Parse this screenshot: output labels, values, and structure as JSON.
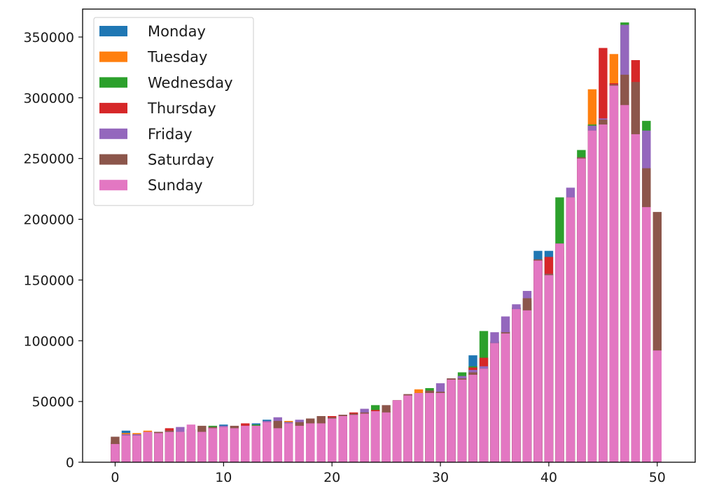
{
  "chart_data": {
    "type": "bar",
    "title": "",
    "xlabel": "",
    "ylabel": "",
    "xlim": [
      -3,
      53.5
    ],
    "ylim": [
      0,
      373000
    ],
    "xticks": [
      0,
      10,
      20,
      30,
      40,
      50
    ],
    "yticks": [
      0,
      50000,
      100000,
      150000,
      200000,
      250000,
      300000,
      350000
    ],
    "grid": false,
    "legend_position": "top-left",
    "x": [
      0,
      1,
      2,
      3,
      4,
      5,
      6,
      7,
      8,
      9,
      10,
      11,
      12,
      13,
      14,
      15,
      16,
      17,
      18,
      19,
      20,
      21,
      22,
      23,
      24,
      25,
      26,
      27,
      28,
      29,
      30,
      31,
      32,
      33,
      34,
      35,
      36,
      37,
      38,
      39,
      40,
      41,
      42,
      43,
      44,
      45,
      46,
      47,
      48,
      49,
      50
    ],
    "series": [
      {
        "name": "Monday",
        "color": "#1f77b4",
        "values": [
          15000,
          26000,
          22000,
          25000,
          24000,
          26000,
          24000,
          26000,
          25000,
          26000,
          31000,
          25000,
          28000,
          32000,
          35000,
          27000,
          31000,
          30000,
          33000,
          32000,
          36000,
          38000,
          39000,
          40000,
          43000,
          41000,
          50000,
          55000,
          57000,
          57000,
          57000,
          68000,
          68000,
          88000,
          77000,
          98000,
          108000,
          127000,
          133000,
          174000,
          174000,
          170000,
          193000,
          250000,
          273000,
          278000,
          310000,
          294000,
          270000,
          210000,
          92000
        ]
      },
      {
        "name": "Tuesday",
        "color": "#ff7f0e",
        "values": [
          16000,
          24000,
          24000,
          26000,
          25000,
          26000,
          24000,
          27000,
          25000,
          27000,
          28000,
          28000,
          29000,
          30000,
          33000,
          27000,
          34000,
          30000,
          33000,
          32000,
          37000,
          38000,
          39000,
          41000,
          42000,
          40000,
          51000,
          56000,
          60000,
          58000,
          58000,
          68000,
          70000,
          73000,
          77000,
          99000,
          107000,
          128000,
          135000,
          166000,
          154000,
          176000,
          207000,
          250000,
          307000,
          278000,
          336000,
          294000,
          270000,
          210000,
          92000
        ]
      },
      {
        "name": "Wednesday",
        "color": "#2ca02c",
        "values": [
          15000,
          22000,
          22000,
          25000,
          25000,
          27000,
          24000,
          27000,
          25000,
          30000,
          29000,
          27000,
          29000,
          31000,
          34000,
          28000,
          33000,
          31000,
          34000,
          33000,
          37000,
          38000,
          40000,
          40000,
          47000,
          41000,
          51000,
          55000,
          57000,
          61000,
          58000,
          68000,
          74000,
          79000,
          108000,
          100000,
          107000,
          127000,
          131000,
          167000,
          155000,
          218000,
          218000,
          257000,
          278000,
          280000,
          311000,
          362000,
          280000,
          281000,
          92000
        ]
      },
      {
        "name": "Thursday",
        "color": "#d62728",
        "values": [
          16000,
          22000,
          23000,
          25000,
          25000,
          28000,
          24000,
          27000,
          25000,
          28000,
          29000,
          28000,
          32000,
          30000,
          33000,
          28000,
          32000,
          30000,
          33000,
          33000,
          38000,
          39000,
          41000,
          40000,
          43000,
          42000,
          51000,
          55000,
          57000,
          59000,
          58000,
          69000,
          70000,
          78000,
          86000,
          99000,
          108000,
          127000,
          127000,
          166000,
          169000,
          177000,
          215000,
          251000,
          277000,
          341000,
          312000,
          297000,
          331000,
          212000,
          92000
        ]
      },
      {
        "name": "Friday",
        "color": "#9467bd",
        "values": [
          17000,
          23000,
          23000,
          25000,
          25000,
          26000,
          29000,
          27000,
          27000,
          29000,
          30000,
          27000,
          30000,
          30000,
          34000,
          37000,
          33000,
          35000,
          33000,
          34000,
          36000,
          39000,
          39000,
          44000,
          42000,
          41000,
          51000,
          56000,
          57000,
          58000,
          65000,
          69000,
          71000,
          76000,
          79000,
          107000,
          120000,
          130000,
          141000,
          167000,
          155000,
          180000,
          226000,
          251000,
          277000,
          283000,
          311000,
          360000,
          273000,
          273000,
          92000
        ]
      },
      {
        "name": "Saturday",
        "color": "#8c564b",
        "values": [
          21000,
          22000,
          22000,
          25000,
          25000,
          26000,
          25000,
          27000,
          30000,
          29000,
          29000,
          30000,
          30000,
          30000,
          33000,
          34000,
          32000,
          33000,
          36000,
          38000,
          37000,
          39000,
          40000,
          41000,
          42000,
          47000,
          51000,
          56000,
          57000,
          59000,
          58000,
          69000,
          69000,
          74000,
          77000,
          98000,
          107000,
          125000,
          135000,
          167000,
          155000,
          180000,
          218000,
          251000,
          273000,
          282000,
          311000,
          319000,
          313000,
          242000,
          206000
        ]
      },
      {
        "name": "Sunday",
        "color": "#e377c2",
        "values": [
          15000,
          22000,
          22000,
          25000,
          24000,
          25000,
          25000,
          31000,
          25000,
          28000,
          29000,
          28000,
          30000,
          30000,
          33000,
          28000,
          32000,
          30000,
          32000,
          32000,
          36000,
          38000,
          39000,
          40000,
          42000,
          41000,
          51000,
          55000,
          57000,
          57000,
          57000,
          68000,
          68000,
          72000,
          77000,
          98000,
          106000,
          126000,
          125000,
          166000,
          154000,
          180000,
          218000,
          250000,
          273000,
          278000,
          310000,
          294000,
          270000,
          210000,
          92000
        ]
      }
    ]
  }
}
